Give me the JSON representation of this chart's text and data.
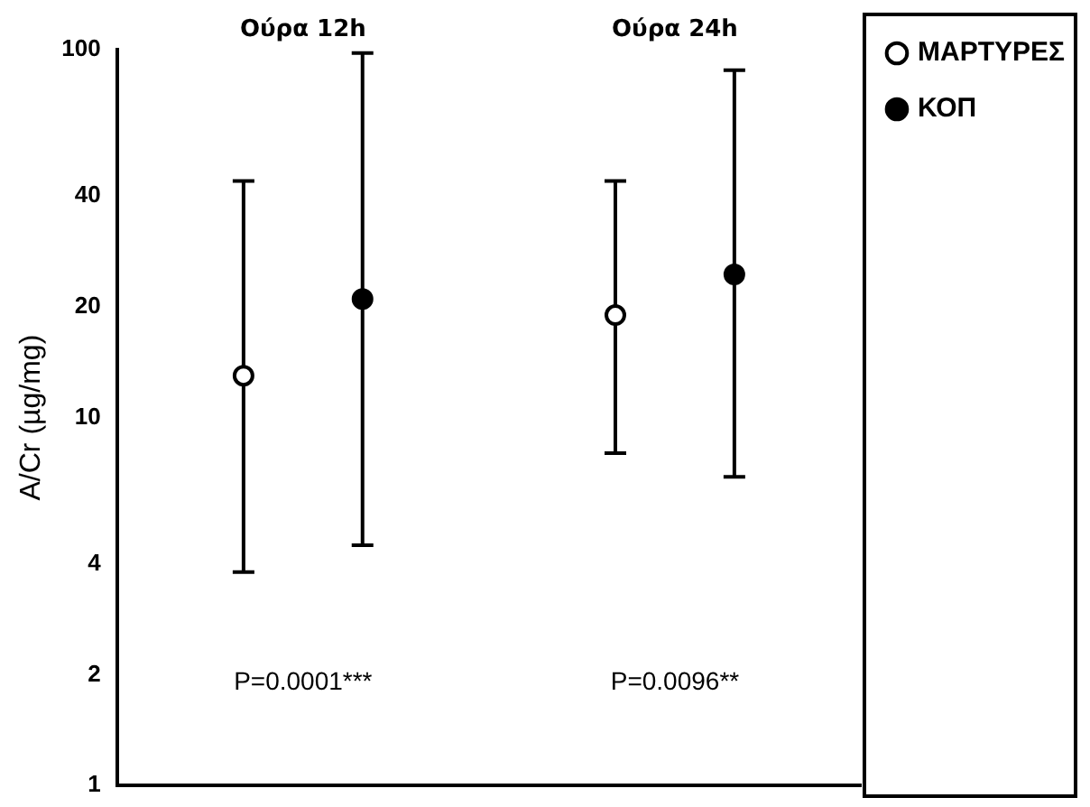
{
  "chart_data": {
    "type": "scatter",
    "ylabel": "A/Cr (µg/mg)",
    "categories": [
      "Ούρα 12h",
      "Ούρα 24h"
    ],
    "series": [
      {
        "name": "ΜΑΡΤΥΡΕΣ",
        "color": "#ffffff",
        "values": [
          13,
          19
        ],
        "errors": [
          [
            3.8,
            44
          ],
          [
            8,
            44
          ]
        ]
      },
      {
        "name": "ΚΟΠ",
        "color": "#000000",
        "values": [
          21,
          24.5
        ],
        "errors": [
          [
            4.5,
            98
          ],
          [
            6.9,
            88
          ]
        ]
      }
    ],
    "log": "y",
    "ylim": [
      1,
      100
    ],
    "yticks": [
      1,
      2,
      4,
      10,
      20,
      40,
      100
    ],
    "grid": false,
    "legend": "top right",
    "marker": "circle",
    "annotations": [
      "P=0.0001***",
      "P=0.0096**"
    ]
  }
}
